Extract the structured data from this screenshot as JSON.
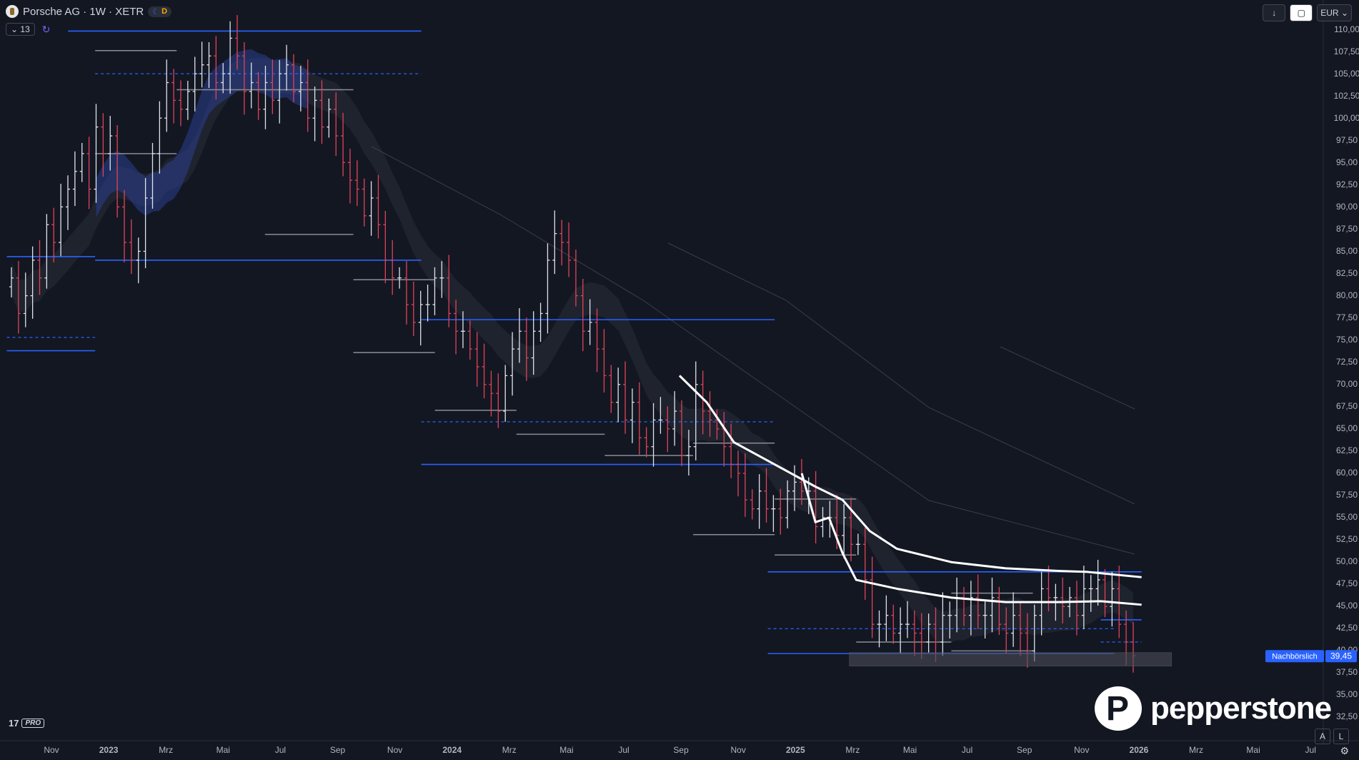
{
  "header": {
    "symbol": "Porsche AG · 1W · XETR",
    "badge_d": "D",
    "indicator_count": "13"
  },
  "toolbar": {
    "currency": "EUR",
    "scale_auto": "A",
    "scale_log": "L"
  },
  "brand": {
    "watermark": "pepperstone",
    "platform": "PRO"
  },
  "colors": {
    "background": "#131722",
    "up_candle": "#e0e3eb",
    "down_candle": "#e0435a",
    "level_line": "#2962ff",
    "range_line": "#8a8d96",
    "ma_line": "#ffffff",
    "cloud": "#2a3f8f"
  },
  "chart_data": {
    "type": "candlestick",
    "timeframe": "1W",
    "x_ticks": [
      "Nov",
      "2023",
      "Mrz",
      "Mai",
      "Jul",
      "Sep",
      "Nov",
      "2024",
      "Mrz",
      "Mai",
      "Jul",
      "Sep",
      "Nov",
      "2025",
      "Mrz",
      "Mai",
      "Jul",
      "Sep",
      "Nov",
      "2026",
      "Mrz",
      "Mai",
      "Jul"
    ],
    "y_ticks": [
      "110,00",
      "107,50",
      "105,00",
      "102,50",
      "100,00",
      "97,50",
      "95,00",
      "92,50",
      "90,00",
      "87,50",
      "85,00",
      "82,50",
      "80,00",
      "77,50",
      "75,00",
      "72,50",
      "70,00",
      "67,50",
      "65,00",
      "62,50",
      "60,00",
      "57,50",
      "55,00",
      "52,50",
      "50,00",
      "47,50",
      "45,00",
      "42,50",
      "40,00",
      "37,50",
      "35,00",
      "32,50"
    ],
    "ylim": [
      31,
      111
    ],
    "last_price": {
      "label": "Nachbörslich",
      "value": "39,45",
      "price": 39.45
    },
    "prices": [
      82,
      78,
      80,
      84,
      82,
      88,
      86,
      90,
      92,
      94,
      96,
      92,
      99,
      96,
      98,
      90,
      86,
      84,
      85,
      91,
      96,
      100,
      104,
      102,
      101,
      103,
      105,
      106,
      107,
      104,
      105,
      109,
      107,
      103,
      104,
      101,
      104,
      102,
      105,
      106,
      103,
      104,
      100,
      102,
      99,
      101,
      98,
      95,
      93,
      92,
      89,
      91,
      88,
      84,
      82,
      82,
      79,
      77,
      79,
      79,
      82,
      82,
      78,
      76,
      76,
      74,
      72,
      70,
      69,
      67,
      71,
      74,
      76,
      73,
      76,
      78,
      84,
      87,
      86,
      84,
      80,
      76,
      77,
      74,
      71,
      68,
      70,
      66,
      68,
      64,
      63,
      66,
      66,
      65,
      67,
      62,
      63,
      70,
      67,
      66,
      65,
      63,
      61,
      60,
      57,
      56,
      58,
      56,
      56,
      55,
      58,
      59,
      58,
      58,
      54,
      55,
      55,
      53,
      55,
      52,
      52,
      48,
      43,
      43,
      44,
      42,
      43,
      43,
      42,
      41,
      43,
      41,
      44,
      44,
      46,
      44,
      46,
      44,
      44,
      46,
      43,
      42,
      44,
      42,
      40,
      44,
      47,
      46,
      46,
      45,
      46,
      44,
      47,
      47,
      48,
      45,
      47,
      43,
      41,
      39.45
    ],
    "levels_solid": [
      {
        "price": 109.8,
        "from": 0.05,
        "to": 0.31
      },
      {
        "price": 84.4,
        "from": 0.005,
        "to": 0.07
      },
      {
        "price": 84.0,
        "from": 0.07,
        "to": 0.31
      },
      {
        "price": 73.8,
        "from": 0.005,
        "to": 0.07
      },
      {
        "price": 77.3,
        "from": 0.31,
        "to": 0.57
      },
      {
        "price": 61.0,
        "from": 0.31,
        "to": 0.57
      },
      {
        "price": 48.9,
        "from": 0.565,
        "to": 0.84
      },
      {
        "price": 39.7,
        "from": 0.565,
        "to": 0.82
      },
      {
        "price": 43.5,
        "from": 0.81,
        "to": 0.84
      }
    ],
    "levels_dashed": [
      {
        "price": 105.0,
        "from": 0.07,
        "to": 0.31
      },
      {
        "price": 75.3,
        "from": 0.005,
        "to": 0.07
      },
      {
        "price": 65.8,
        "from": 0.31,
        "to": 0.57
      },
      {
        "price": 42.5,
        "from": 0.565,
        "to": 0.82
      },
      {
        "price": 41.0,
        "from": 0.81,
        "to": 0.84
      }
    ],
    "ranges": [
      {
        "price": 107.6,
        "from": 0.07,
        "to": 0.13
      },
      {
        "price": 103.2,
        "from": 0.13,
        "to": 0.26
      },
      {
        "price": 96.0,
        "from": 0.07,
        "to": 0.13
      },
      {
        "price": 86.9,
        "from": 0.195,
        "to": 0.26
      },
      {
        "price": 81.8,
        "from": 0.26,
        "to": 0.32
      },
      {
        "price": 73.6,
        "from": 0.26,
        "to": 0.32
      },
      {
        "price": 67.1,
        "from": 0.32,
        "to": 0.38
      },
      {
        "price": 64.4,
        "from": 0.38,
        "to": 0.445
      },
      {
        "price": 62.0,
        "from": 0.445,
        "to": 0.51
      },
      {
        "price": 63.4,
        "from": 0.51,
        "to": 0.57
      },
      {
        "price": 53.1,
        "from": 0.51,
        "to": 0.57
      },
      {
        "price": 57.1,
        "from": 0.57,
        "to": 0.63
      },
      {
        "price": 50.8,
        "from": 0.57,
        "to": 0.63
      },
      {
        "price": 41.0,
        "from": 0.63,
        "to": 0.7
      },
      {
        "price": 46.5,
        "from": 0.7,
        "to": 0.76
      },
      {
        "price": 40.0,
        "from": 0.7,
        "to": 0.76
      }
    ],
    "ma_fast": [
      [
        0.5,
        71
      ],
      [
        0.52,
        68
      ],
      [
        0.54,
        63.5
      ],
      [
        0.57,
        61
      ],
      [
        0.6,
        58.5
      ],
      [
        0.62,
        57
      ],
      [
        0.64,
        53.5
      ],
      [
        0.66,
        51.5
      ],
      [
        0.7,
        50
      ],
      [
        0.74,
        49.3
      ],
      [
        0.78,
        49.0
      ],
      [
        0.8,
        48.9
      ],
      [
        0.84,
        48.3
      ]
    ],
    "ma_slow": [
      [
        0.59,
        60
      ],
      [
        0.6,
        54.5
      ],
      [
        0.61,
        55
      ],
      [
        0.62,
        51
      ],
      [
        0.63,
        48
      ],
      [
        0.66,
        47
      ],
      [
        0.7,
        46
      ],
      [
        0.74,
        45.5
      ],
      [
        0.78,
        45.5
      ],
      [
        0.81,
        45.6
      ],
      [
        0.84,
        45.2
      ]
    ],
    "consolidation_box": {
      "from": 0.625,
      "to": 0.862,
      "low": 38.3,
      "high": 39.8
    }
  }
}
